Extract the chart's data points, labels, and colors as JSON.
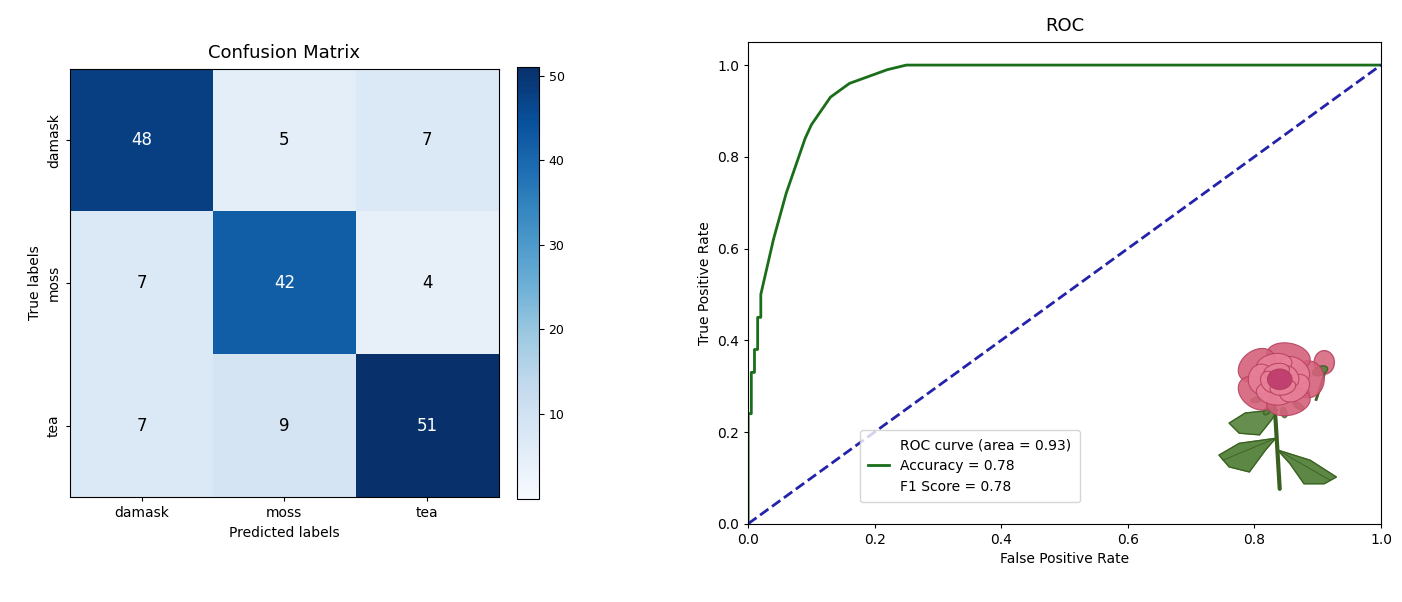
{
  "cm_title": "Confusion Matrix",
  "roc_title": "ROC",
  "cm_matrix": [
    [
      48,
      5,
      7
    ],
    [
      7,
      42,
      4
    ],
    [
      7,
      9,
      51
    ]
  ],
  "cm_classes": [
    "damask",
    "moss",
    "tea"
  ],
  "cm_xlabel": "Predicted labels",
  "cm_ylabel": "True labels",
  "roc_xlabel": "False Positive Rate",
  "roc_ylabel": "True Positive Rate",
  "roc_area": 0.93,
  "accuracy": 0.78,
  "f1_score": 0.78,
  "roc_color": "#1a6e1a",
  "diag_color": "#2222aa",
  "colorbar_max": 51,
  "roc_fpr": [
    0.0,
    0.0,
    0.005,
    0.005,
    0.01,
    0.01,
    0.015,
    0.015,
    0.02,
    0.02,
    0.03,
    0.04,
    0.05,
    0.06,
    0.07,
    0.08,
    0.09,
    0.1,
    0.11,
    0.12,
    0.13,
    0.14,
    0.15,
    0.16,
    0.17,
    0.18,
    0.19,
    0.2,
    0.22,
    0.25,
    0.3,
    0.35,
    1.0
  ],
  "roc_tpr": [
    0.0,
    0.24,
    0.24,
    0.33,
    0.33,
    0.38,
    0.38,
    0.45,
    0.45,
    0.5,
    0.56,
    0.62,
    0.67,
    0.72,
    0.76,
    0.8,
    0.84,
    0.87,
    0.89,
    0.91,
    0.93,
    0.94,
    0.95,
    0.96,
    0.965,
    0.97,
    0.975,
    0.98,
    0.99,
    1.0,
    1.0,
    1.0,
    1.0
  ]
}
